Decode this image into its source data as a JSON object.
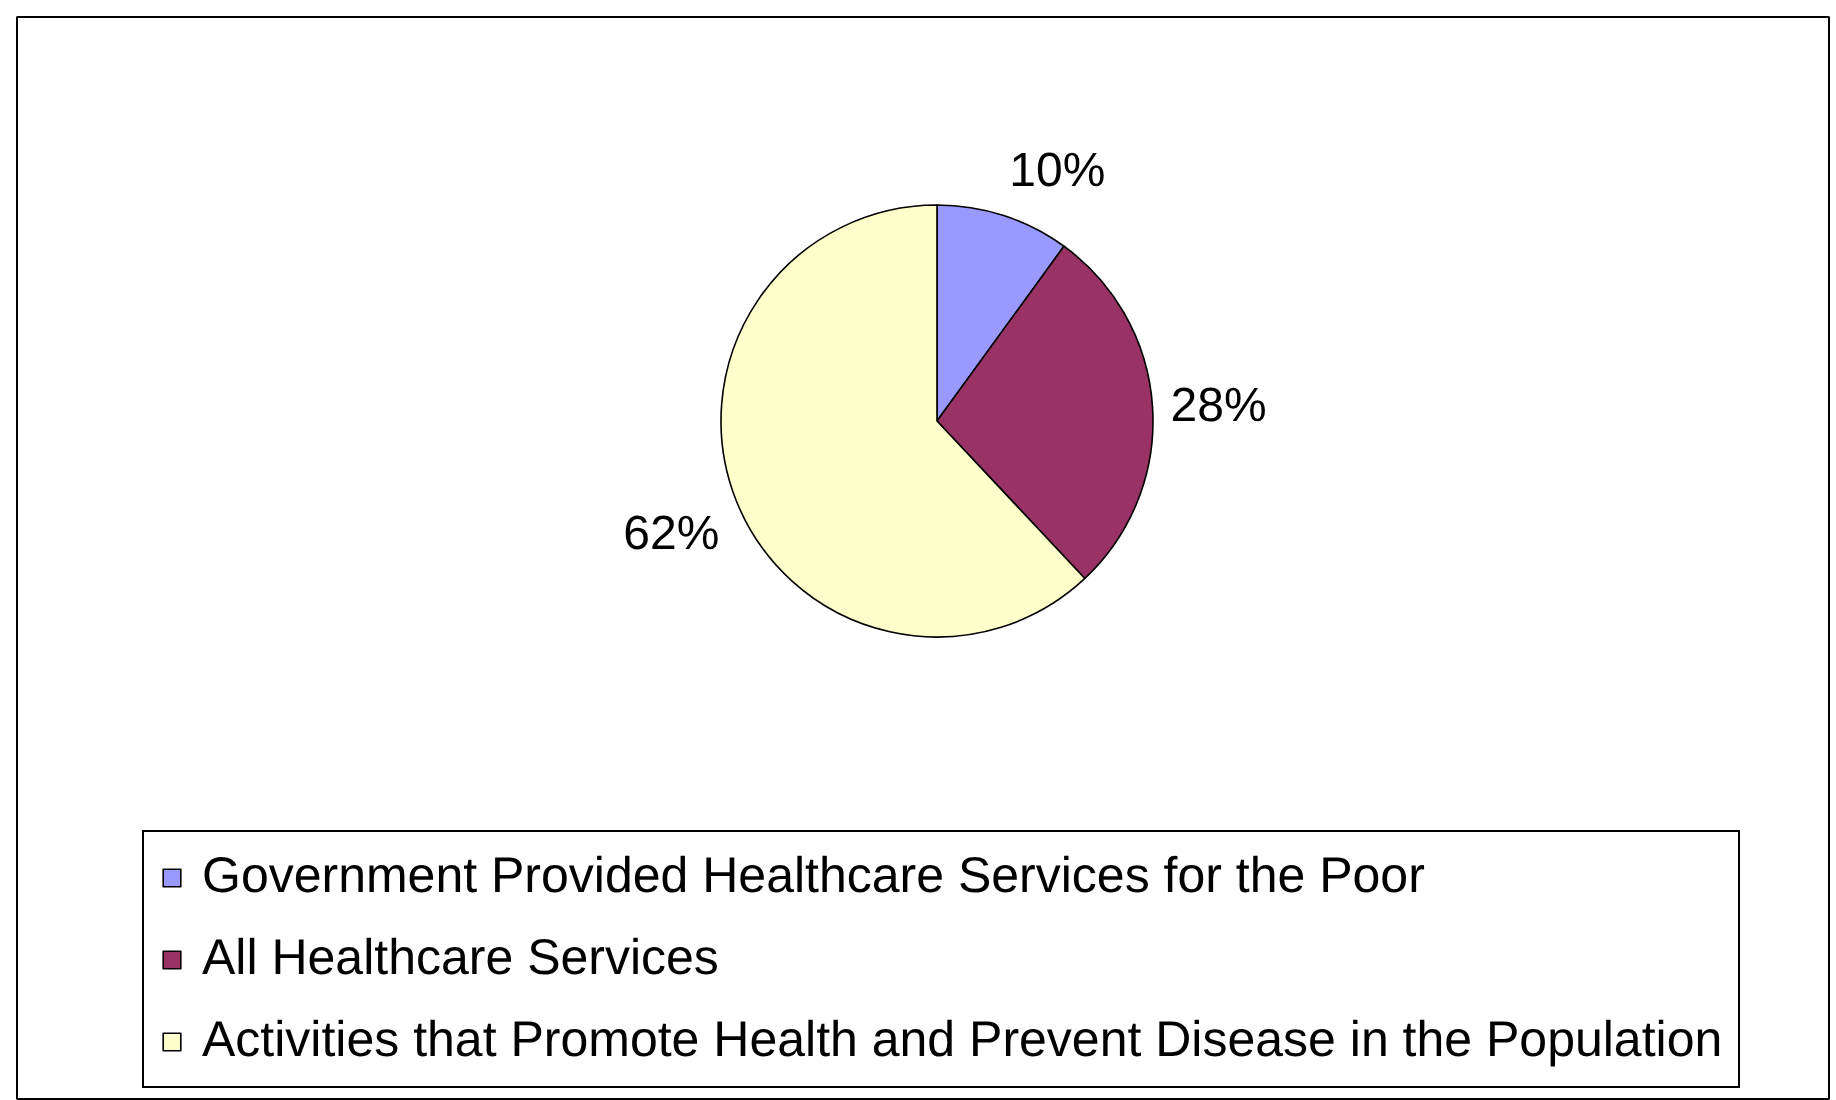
{
  "chart_data": {
    "type": "pie",
    "categories": [
      "Government Provided Healthcare Services for the Poor",
      "All Healthcare Services",
      "Activities that Promote Health and Prevent Disease in the Population"
    ],
    "values": [
      10,
      28,
      62
    ],
    "colors": [
      "#9999ff",
      "#993366",
      "#ffffcc"
    ],
    "value_labels": [
      "10%",
      "28%",
      "62%"
    ],
    "legend": "bottom"
  }
}
